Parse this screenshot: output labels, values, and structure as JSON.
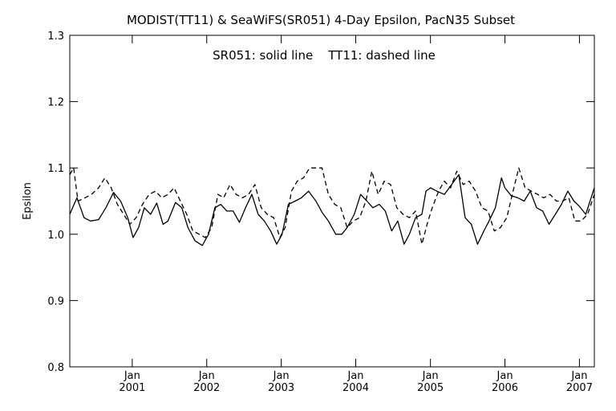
{
  "chart_data": {
    "type": "line",
    "title": "MODIST(TT11) & SeaWiFS(SR051) 4-Day Epsilon, PacN35 Subset",
    "annotation": "SR051: solid line    TT11: dashed line",
    "ylabel": "Epsilon",
    "xlabel": "",
    "ylim": [
      0.8,
      1.3
    ],
    "y_ticks": [
      "0.8",
      "0.9",
      "1.0",
      "1.1",
      "1.2",
      "1.3"
    ],
    "xlim": [
      "2000-03-01",
      "2007-03-15"
    ],
    "x_ticks": [
      {
        "date": "2001-01-01",
        "month": "Jan",
        "year": "2001"
      },
      {
        "date": "2002-01-01",
        "month": "Jan",
        "year": "2002"
      },
      {
        "date": "2003-01-01",
        "month": "Jan",
        "year": "2003"
      },
      {
        "date": "2004-01-01",
        "month": "Jan",
        "year": "2004"
      },
      {
        "date": "2005-01-01",
        "month": "Jan",
        "year": "2005"
      },
      {
        "date": "2006-01-01",
        "month": "Jan",
        "year": "2006"
      },
      {
        "date": "2007-01-01",
        "month": "Jan",
        "year": "2007"
      }
    ],
    "grid": false,
    "legend": "none",
    "series": [
      {
        "name": "SR051",
        "style": "solid",
        "color": "#000000",
        "x": [
          "2000-03-01",
          "2000-04-05",
          "2000-05-10",
          "2000-06-10",
          "2000-07-20",
          "2000-08-25",
          "2000-10-01",
          "2000-11-05",
          "2000-12-10",
          "2001-01-05",
          "2001-02-01",
          "2001-03-01",
          "2001-04-01",
          "2001-05-01",
          "2001-06-01",
          "2001-06-25",
          "2001-08-01",
          "2001-09-01",
          "2001-10-01",
          "2001-11-05",
          "2001-12-10",
          "2002-01-10",
          "2002-02-10",
          "2002-03-10",
          "2002-04-10",
          "2002-05-10",
          "2002-06-10",
          "2002-07-10",
          "2002-08-10",
          "2002-09-10",
          "2002-10-10",
          "2002-11-10",
          "2002-12-10",
          "2003-01-05",
          "2003-02-05",
          "2003-03-10",
          "2003-04-10",
          "2003-05-15",
          "2003-06-20",
          "2003-07-20",
          "2003-08-20",
          "2003-09-25",
          "2003-10-25",
          "2003-11-20",
          "2003-12-25",
          "2004-01-25",
          "2004-02-25",
          "2004-03-25",
          "2004-04-25",
          "2004-05-25",
          "2004-06-25",
          "2004-07-25",
          "2004-08-25",
          "2004-09-20",
          "2004-10-20",
          "2004-11-20",
          "2004-12-10",
          "2005-01-01",
          "2005-02-01",
          "2005-03-10",
          "2005-04-15",
          "2005-05-20",
          "2005-06-20",
          "2005-07-20",
          "2005-08-20",
          "2005-09-20",
          "2005-10-15",
          "2005-11-15",
          "2005-12-15",
          "2006-01-01",
          "2006-02-01",
          "2006-03-05",
          "2006-04-05",
          "2006-05-05",
          "2006-06-05",
          "2006-07-05",
          "2006-08-05",
          "2006-09-05",
          "2006-10-05",
          "2006-11-05",
          "2006-12-05",
          "2007-01-01",
          "2007-02-01",
          "2007-03-15"
        ],
        "y": [
          1.03,
          1.055,
          1.025,
          1.02,
          1.022,
          1.04,
          1.063,
          1.05,
          1.025,
          0.995,
          1.01,
          1.04,
          1.03,
          1.047,
          1.015,
          1.02,
          1.048,
          1.04,
          1.01,
          0.99,
          0.983,
          1.0,
          1.04,
          1.045,
          1.035,
          1.035,
          1.018,
          1.04,
          1.06,
          1.03,
          1.02,
          1.005,
          0.985,
          1.0,
          1.045,
          1.05,
          1.055,
          1.065,
          1.05,
          1.033,
          1.02,
          1.0,
          1.0,
          1.01,
          1.03,
          1.06,
          1.05,
          1.04,
          1.045,
          1.035,
          1.005,
          1.02,
          0.985,
          1.0,
          1.025,
          1.03,
          1.065,
          1.07,
          1.065,
          1.06,
          1.075,
          1.09,
          1.025,
          1.015,
          0.985,
          1.005,
          1.02,
          1.04,
          1.085,
          1.07,
          1.058,
          1.055,
          1.05,
          1.065,
          1.04,
          1.035,
          1.015,
          1.03,
          1.045,
          1.065,
          1.05,
          1.042,
          1.03,
          1.07
        ]
      },
      {
        "name": "TT11",
        "style": "dashed",
        "color": "#000000",
        "x": [
          "2000-03-01",
          "2000-03-20",
          "2000-04-10",
          "2000-05-15",
          "2000-06-15",
          "2000-07-20",
          "2000-08-20",
          "2000-09-20",
          "2000-10-20",
          "2000-11-20",
          "2000-12-20",
          "2001-01-20",
          "2001-02-20",
          "2001-03-25",
          "2001-04-25",
          "2001-05-25",
          "2001-06-25",
          "2001-07-25",
          "2001-08-25",
          "2001-09-25",
          "2001-10-25",
          "2001-11-25",
          "2001-12-25",
          "2002-01-25",
          "2002-02-25",
          "2002-03-25",
          "2002-04-25",
          "2002-05-25",
          "2002-06-25",
          "2002-07-25",
          "2002-08-25",
          "2002-09-25",
          "2002-10-25",
          "2002-11-25",
          "2002-12-25",
          "2003-01-20",
          "2003-02-20",
          "2003-03-20",
          "2003-04-20",
          "2003-05-20",
          "2003-06-20",
          "2003-07-20",
          "2003-08-20",
          "2003-09-20",
          "2003-10-20",
          "2003-11-20",
          "2003-12-20",
          "2004-01-20",
          "2004-02-20",
          "2004-03-20",
          "2004-04-20",
          "2004-05-20",
          "2004-06-20",
          "2004-07-20",
          "2004-08-20",
          "2004-09-20",
          "2004-10-20",
          "2004-11-20",
          "2004-12-20",
          "2005-01-10",
          "2005-02-10",
          "2005-03-10",
          "2005-04-10",
          "2005-05-10",
          "2005-06-10",
          "2005-07-10",
          "2005-08-10",
          "2005-09-10",
          "2005-10-10",
          "2005-11-10",
          "2005-12-10",
          "2006-01-10",
          "2006-02-10",
          "2006-03-10",
          "2006-04-10",
          "2006-05-10",
          "2006-06-10",
          "2006-07-10",
          "2006-08-10",
          "2006-09-10",
          "2006-10-10",
          "2006-11-10",
          "2006-12-10",
          "2007-01-10",
          "2007-02-10",
          "2007-03-15"
        ],
        "y": [
          1.09,
          1.1,
          1.05,
          1.055,
          1.06,
          1.07,
          1.085,
          1.07,
          1.045,
          1.03,
          1.015,
          1.025,
          1.045,
          1.06,
          1.065,
          1.055,
          1.06,
          1.07,
          1.05,
          1.03,
          1.005,
          1.0,
          0.995,
          1.01,
          1.06,
          1.055,
          1.075,
          1.06,
          1.055,
          1.06,
          1.075,
          1.04,
          1.03,
          1.025,
          0.995,
          1.01,
          1.065,
          1.08,
          1.085,
          1.1,
          1.1,
          1.1,
          1.06,
          1.045,
          1.04,
          1.01,
          1.02,
          1.025,
          1.05,
          1.095,
          1.06,
          1.08,
          1.075,
          1.04,
          1.03,
          1.025,
          1.035,
          0.985,
          1.02,
          1.04,
          1.065,
          1.08,
          1.07,
          1.095,
          1.075,
          1.08,
          1.065,
          1.04,
          1.035,
          1.005,
          1.01,
          1.025,
          1.065,
          1.1,
          1.07,
          1.065,
          1.06,
          1.055,
          1.06,
          1.05,
          1.05,
          1.055,
          1.02,
          1.02,
          1.03,
          1.06
        ]
      }
    ]
  }
}
